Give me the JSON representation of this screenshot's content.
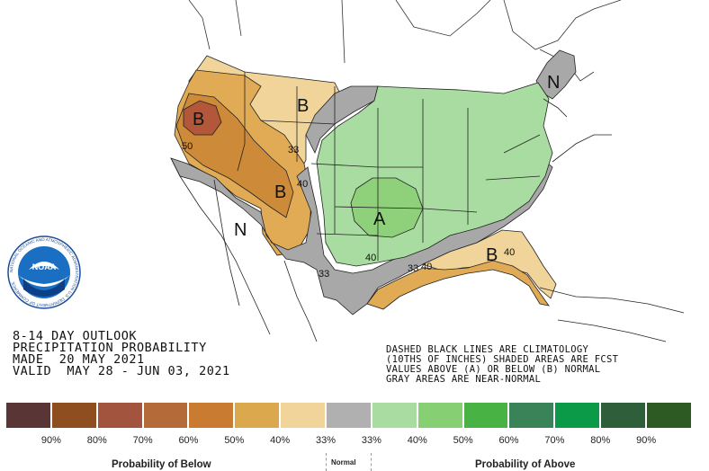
{
  "map": {
    "region_labels": [
      {
        "text": "B",
        "cat": "below"
      },
      {
        "text": "B",
        "cat": "below"
      },
      {
        "text": "B",
        "cat": "below"
      },
      {
        "text": "N",
        "cat": "normal"
      },
      {
        "text": "N",
        "cat": "normal"
      },
      {
        "text": "A",
        "cat": "above"
      },
      {
        "text": "B",
        "cat": "below"
      }
    ],
    "contour_labels": [
      "50",
      "33",
      "40",
      "33",
      "40",
      "33",
      "40",
      "40"
    ],
    "colors": {
      "below_33": "#f0d49a",
      "below_40": "#e1ab55",
      "below_50": "#cd8a38",
      "below_60": "#b2573a",
      "normal": "#a8a8a8",
      "above_33": "#a9dca0",
      "above_40": "#8fd17a",
      "water": "#ffffff",
      "border": "#222222"
    }
  },
  "title": {
    "line1": "8-14 DAY OUTLOOK",
    "line2": "PRECIPITATION PROBABILITY",
    "line3": "MADE  20 MAY 2021",
    "line4": "VALID  MAY 28 - JUN 03, 2021"
  },
  "notes": {
    "line1": "DASHED BLACK LINES ARE CLIMATOLOGY",
    "line2": "(10THS OF INCHES) SHADED AREAS ARE FCST",
    "line3": "VALUES ABOVE (A) OR BELOW (B) NORMAL",
    "line4": "GRAY AREAS ARE NEAR-NORMAL"
  },
  "logo": {
    "text": "NOAA",
    "ring_text": "NATIONAL OCEANIC AND ATMOSPHERIC ADMINISTRATION U.S. DEPARTMENT OF COMMERCE"
  },
  "legend": {
    "colors": [
      "#5a3535",
      "#8f4e1f",
      "#a3543f",
      "#b56a3a",
      "#c97b32",
      "#dca84e",
      "#f0d49a",
      "#b0b0b0",
      "#a9dca0",
      "#86cf72",
      "#48b344",
      "#3a8257",
      "#0a9a48",
      "#2f5e3a",
      "#2d5a22"
    ],
    "ticks": [
      "90%",
      "80%",
      "70%",
      "60%",
      "50%",
      "40%",
      "33%",
      "33%",
      "40%",
      "50%",
      "60%",
      "70%",
      "80%",
      "90%"
    ],
    "caption_below": "Probability of Below",
    "caption_normal": "Normal",
    "caption_above": "Probability of Above"
  }
}
